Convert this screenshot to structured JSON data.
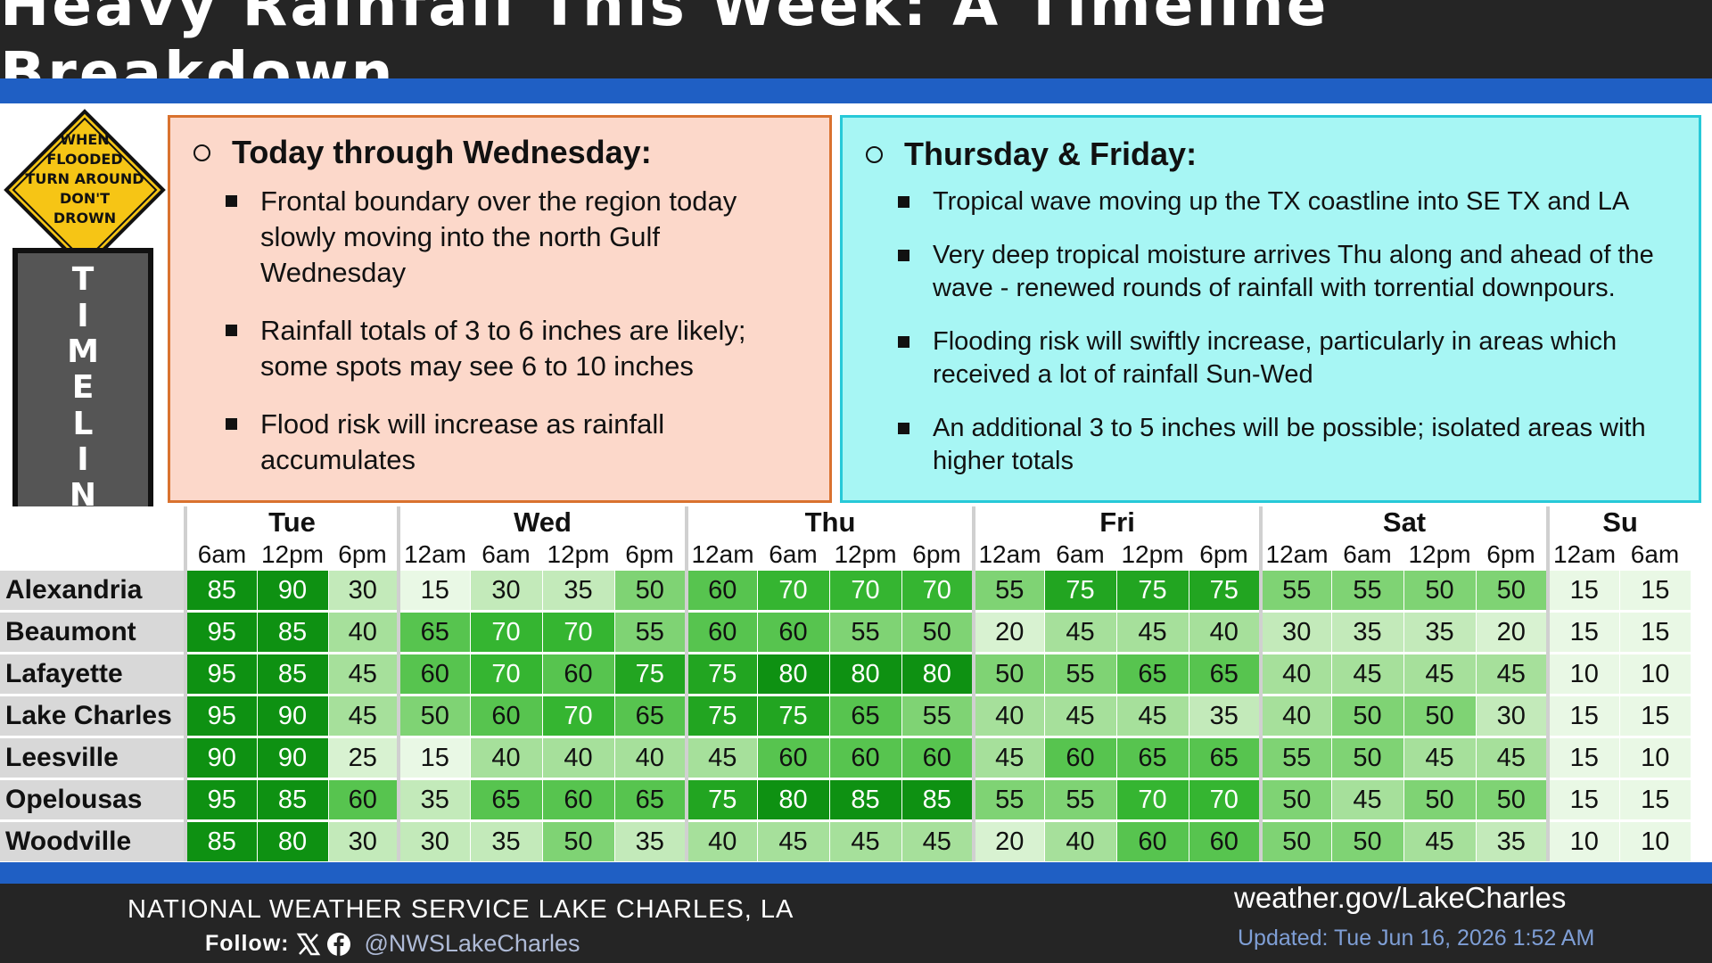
{
  "title": "Heavy Rainfall This Week: A Timeline Breakdown",
  "sign": {
    "lines": [
      "WHEN",
      "FLOODED",
      "TURN AROUND",
      "DON'T",
      "DROWN"
    ]
  },
  "timeline_label": "TIMELINE",
  "left_box": {
    "heading": "Today through Wednesday:",
    "bullets": [
      "Frontal boundary over the region today slowly moving into the north Gulf Wednesday",
      "Rainfall totals of 3 to 6 inches are likely; some spots may see 6 to 10 inches",
      "Flood risk will increase as rainfall accumulates"
    ]
  },
  "right_box": {
    "heading": "Thursday & Friday:",
    "bullets": [
      "Tropical wave moving up the TX coastline into SE TX and LA",
      "Very deep tropical moisture arrives Thu along and ahead of the wave - renewed rounds of rainfall with torrential downpours.",
      "Flooding risk will swiftly increase, particularly in areas which received a lot of rainfall Sun-Wed",
      "An additional 3 to 5 inches will be possible; isolated areas with higher totals"
    ]
  },
  "table": {
    "days": [
      {
        "label": "Tue",
        "span": 3
      },
      {
        "label": "Wed",
        "span": 4
      },
      {
        "label": "Thu",
        "span": 4
      },
      {
        "label": "Fri",
        "span": 4
      },
      {
        "label": "Sat",
        "span": 4
      },
      {
        "label": "Su",
        "span": 2
      }
    ],
    "times": [
      "6am",
      "12pm",
      "6pm",
      "12am",
      "6am",
      "12pm",
      "6pm",
      "12am",
      "6am",
      "12pm",
      "6pm",
      "12am",
      "6am",
      "12pm",
      "6pm",
      "12am",
      "6am",
      "12pm",
      "6pm",
      "12am",
      "6am"
    ],
    "rows": [
      {
        "place": "Alexandria",
        "values": [
          85,
          90,
          30,
          15,
          30,
          35,
          50,
          60,
          70,
          70,
          70,
          55,
          75,
          75,
          75,
          55,
          55,
          50,
          50,
          15,
          15
        ]
      },
      {
        "place": "Beaumont",
        "values": [
          95,
          85,
          40,
          65,
          70,
          70,
          55,
          60,
          60,
          55,
          50,
          20,
          45,
          45,
          40,
          30,
          35,
          35,
          20,
          15,
          15
        ]
      },
      {
        "place": "Lafayette",
        "values": [
          95,
          85,
          45,
          60,
          70,
          60,
          75,
          75,
          80,
          80,
          80,
          50,
          55,
          65,
          65,
          40,
          45,
          45,
          45,
          10,
          10
        ]
      },
      {
        "place": "Lake Charles",
        "values": [
          95,
          90,
          45,
          50,
          60,
          70,
          65,
          75,
          75,
          65,
          55,
          40,
          45,
          45,
          35,
          40,
          50,
          50,
          30,
          15,
          15
        ]
      },
      {
        "place": "Leesville",
        "values": [
          90,
          90,
          25,
          15,
          40,
          40,
          40,
          45,
          60,
          60,
          60,
          45,
          60,
          65,
          65,
          55,
          50,
          45,
          45,
          15,
          10
        ]
      },
      {
        "place": "Opelousas",
        "values": [
          95,
          85,
          60,
          35,
          65,
          60,
          65,
          75,
          80,
          85,
          85,
          55,
          55,
          70,
          70,
          50,
          45,
          50,
          50,
          15,
          15
        ]
      },
      {
        "place": "Woodville",
        "values": [
          85,
          80,
          30,
          30,
          35,
          50,
          35,
          40,
          45,
          45,
          45,
          20,
          40,
          60,
          60,
          50,
          50,
          45,
          35,
          10,
          10
        ]
      }
    ]
  },
  "footer": {
    "office": "NATIONAL WEATHER SERVICE LAKE CHARLES, LA",
    "follow_label": "Follow:",
    "handle": "@NWSLakeCharles",
    "url": "weather.gov/LakeCharles",
    "updated": "Updated: Tue Jun 16, 2026 1:52 AM",
    "icons": [
      "x-logo-icon",
      "facebook-logo-icon"
    ]
  },
  "colors": {
    "title_bg": "#252525",
    "stripe": "#1f5fc4",
    "left_box_bg": "#fcd8ca",
    "left_box_border": "#d9722f",
    "right_box_bg": "#a7f6f4",
    "right_box_border": "#27c9d8",
    "sign_yellow": "#f6c515"
  }
}
